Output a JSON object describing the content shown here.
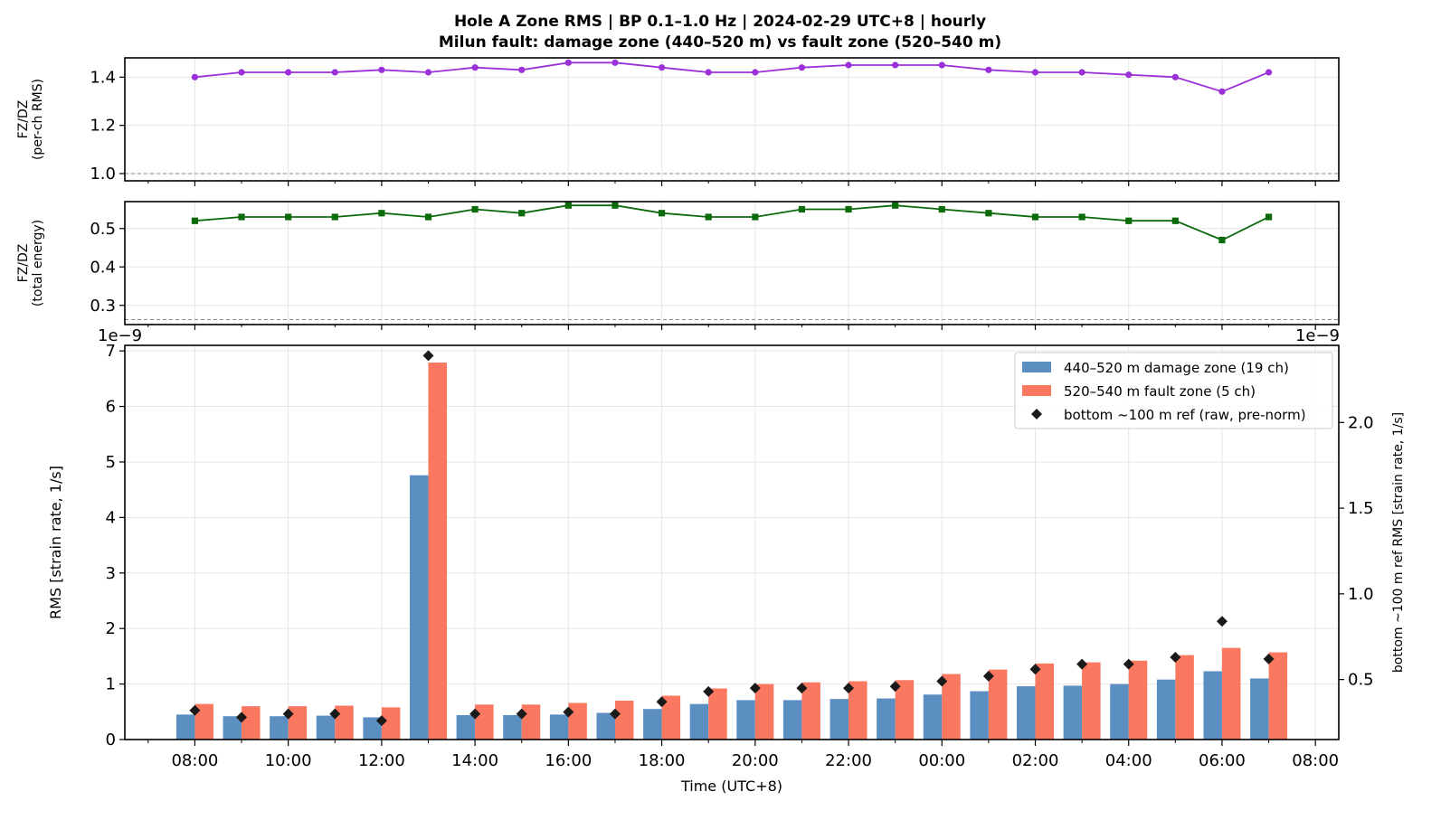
{
  "title_line1": "Hole A Zone RMS  |  BP 0.1–1.0 Hz  |  2024-02-29 UTC+8  |  hourly",
  "title_line2": "Milun fault: damage zone (440–520 m) vs fault zone (520–540 m)",
  "colors": {
    "damage": "#5b8ec1",
    "fault": "#fa7860",
    "ref": "#1a1a1a",
    "rms_ratio": "#9b30d9",
    "energy_ratio": "#0b6b0b"
  },
  "chart_data": [
    {
      "type": "line",
      "panel": "top",
      "ylabel": "FZ/DZ\n(per-ch RMS)",
      "ylim": [
        0.97,
        1.48
      ],
      "yticks": [
        "1.0",
        "1.2",
        "1.4"
      ],
      "reference_line": 1.0,
      "grid": true,
      "x_hours": [
        8,
        9,
        10,
        11,
        12,
        13,
        14,
        15,
        16,
        17,
        18,
        19,
        20,
        21,
        22,
        23,
        24,
        25,
        26,
        27,
        28,
        29,
        30,
        31
      ],
      "series": [
        {
          "values": [
            1.4,
            1.42,
            1.42,
            1.42,
            1.43,
            1.42,
            1.44,
            1.43,
            1.46,
            1.46,
            1.44,
            1.42,
            1.42,
            1.44,
            1.45,
            1.45,
            1.45,
            1.43,
            1.42,
            1.42,
            1.41,
            1.4,
            1.34,
            1.42
          ]
        }
      ]
    },
    {
      "type": "line",
      "panel": "middle",
      "ylabel": "FZ/DZ\n(total energy)",
      "ylim": [
        0.25,
        0.57
      ],
      "yticks": [
        "0.3",
        "0.4",
        "0.5"
      ],
      "reference_line": 0.263,
      "grid": true,
      "x_hours": [
        8,
        9,
        10,
        11,
        12,
        13,
        14,
        15,
        16,
        17,
        18,
        19,
        20,
        21,
        22,
        23,
        24,
        25,
        26,
        27,
        28,
        29,
        30,
        31
      ],
      "series": [
        {
          "values": [
            0.52,
            0.53,
            0.53,
            0.53,
            0.54,
            0.53,
            0.55,
            0.54,
            0.56,
            0.56,
            0.54,
            0.53,
            0.53,
            0.55,
            0.55,
            0.56,
            0.55,
            0.54,
            0.53,
            0.53,
            0.52,
            0.52,
            0.47,
            0.53
          ]
        }
      ]
    },
    {
      "type": "bar",
      "panel": "bottom",
      "xlabel": "Time (UTC+8)",
      "ylabel": "RMS  [strain rate, 1/s]",
      "y2label": "bottom ~100 m ref RMS  [strain rate, 1/s]",
      "offset_left": "1e−9",
      "offset_right": "1e−9",
      "ylim": [
        0,
        7.1
      ],
      "y2lim": [
        0.15,
        2.45
      ],
      "yticks": [
        "0",
        "1",
        "2",
        "3",
        "4",
        "5",
        "6",
        "7"
      ],
      "y2ticks": [
        "0.5",
        "1.0",
        "1.5",
        "2.0"
      ],
      "xlim_hours": [
        6.5,
        32.5
      ],
      "xticks_hours": [
        8,
        10,
        12,
        14,
        16,
        18,
        20,
        22,
        24,
        26,
        28,
        30,
        32
      ],
      "xtick_labels": [
        "08:00",
        "10:00",
        "12:00",
        "14:00",
        "16:00",
        "18:00",
        "20:00",
        "22:00",
        "00:00",
        "02:00",
        "04:00",
        "06:00",
        "08:00"
      ],
      "x_hours": [
        8,
        9,
        10,
        11,
        12,
        13,
        14,
        15,
        16,
        17,
        18,
        19,
        20,
        21,
        22,
        23,
        24,
        25,
        26,
        27,
        28,
        29,
        30,
        31
      ],
      "legend_position": "upper right",
      "legend": [
        "440–520 m  damage zone (19 ch)",
        "520–540 m  fault zone (5 ch)",
        "bottom ~100 m ref (raw, pre-norm)"
      ],
      "series": [
        {
          "name": "440–520 m  damage zone (19 ch)",
          "values": [
            0.45,
            0.42,
            0.42,
            0.43,
            0.4,
            4.76,
            0.44,
            0.44,
            0.45,
            0.48,
            0.55,
            0.64,
            0.71,
            0.71,
            0.73,
            0.74,
            0.81,
            0.87,
            0.96,
            0.97,
            1.0,
            1.08,
            1.23,
            1.1
          ]
        },
        {
          "name": "520–540 m  fault zone (5 ch)",
          "values": [
            0.64,
            0.6,
            0.6,
            0.61,
            0.58,
            6.79,
            0.63,
            0.63,
            0.66,
            0.7,
            0.79,
            0.92,
            1.0,
            1.03,
            1.05,
            1.07,
            1.18,
            1.26,
            1.37,
            1.39,
            1.42,
            1.52,
            1.65,
            1.57
          ]
        },
        {
          "name": "bottom ~100 m ref (raw, pre-norm)",
          "axis": "right",
          "values": [
            0.32,
            0.28,
            0.3,
            0.3,
            0.26,
            2.39,
            0.3,
            0.3,
            0.31,
            0.3,
            0.37,
            0.43,
            0.45,
            0.45,
            0.45,
            0.46,
            0.49,
            0.52,
            0.56,
            0.59,
            0.59,
            0.63,
            0.84,
            0.62
          ]
        }
      ]
    }
  ]
}
